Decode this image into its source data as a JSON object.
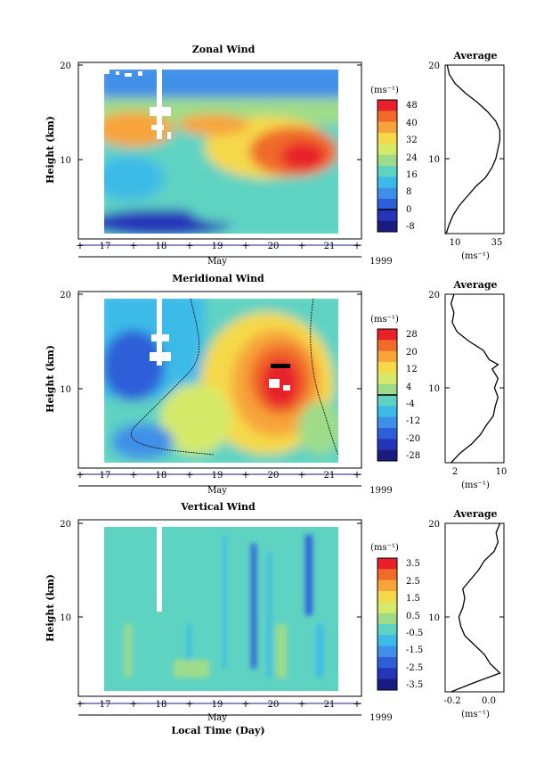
{
  "figure": {
    "xlabel": "Local Time (Day)"
  },
  "chart_data": [
    {
      "type": "heatmap",
      "title": "Zonal Wind",
      "ylabel": "Height (km)",
      "ylim": [
        2,
        20
      ],
      "yticks": [
        "20",
        "10"
      ],
      "xlabel": "May",
      "x_categories": [
        "17",
        "18",
        "19",
        "20",
        "21"
      ],
      "year": "1999",
      "colorbar": {
        "unit": "(ms⁻¹)",
        "levels": [
          "48",
          "40",
          "32",
          "24",
          "16",
          "8",
          "0",
          "-8"
        ],
        "colors": [
          "#e8202a",
          "#f06b2a",
          "#f7a43a",
          "#f5d94a",
          "#d6ea6a",
          "#9edc8a",
          "#5fd3c2",
          "#3cbbe8",
          "#3f8fe8",
          "#2f5fd8",
          "#2535b8",
          "#1a1a80"
        ]
      },
      "profile": {
        "title": "Average",
        "xlim": [
          8,
          37
        ],
        "xticks": [
          "10",
          "35"
        ],
        "yticks": [
          "20",
          "10"
        ],
        "unit": "(ms⁻¹)",
        "points": [
          [
            8.5,
            2
          ],
          [
            10,
            3
          ],
          [
            12,
            4
          ],
          [
            15,
            5
          ],
          [
            19,
            6
          ],
          [
            23,
            7
          ],
          [
            28,
            8
          ],
          [
            31,
            9
          ],
          [
            33,
            10
          ],
          [
            34,
            11
          ],
          [
            35,
            12
          ],
          [
            35,
            13
          ],
          [
            33,
            14
          ],
          [
            29,
            15
          ],
          [
            24,
            16
          ],
          [
            18,
            17
          ],
          [
            13,
            18
          ],
          [
            10,
            19
          ],
          [
            9,
            20
          ]
        ]
      }
    },
    {
      "type": "heatmap",
      "title": "Meridional Wind",
      "ylabel": "Height (km)",
      "ylim": [
        2,
        20
      ],
      "yticks": [
        "20",
        "10"
      ],
      "xlabel": "May",
      "x_categories": [
        "17",
        "18",
        "19",
        "20",
        "21"
      ],
      "year": "1999",
      "colorbar": {
        "unit": "(ms⁻¹)",
        "levels": [
          "28",
          "20",
          "12",
          "4",
          "-4",
          "-12",
          "-20",
          "-28"
        ],
        "colors": [
          "#e8202a",
          "#f06b2a",
          "#f7a43a",
          "#f5d94a",
          "#d6ea6a",
          "#9edc8a",
          "#5fd3c2",
          "#3cbbe8",
          "#3f8fe8",
          "#2f5fd8",
          "#2535b8",
          "#1a1a80"
        ]
      },
      "profile": {
        "title": "Average",
        "xlim": [
          0,
          10
        ],
        "xticks": [
          "2",
          "10"
        ],
        "yticks": [
          "20",
          "10"
        ],
        "unit": "(ms⁻¹)",
        "points": [
          [
            1,
            2
          ],
          [
            2.5,
            3
          ],
          [
            4.5,
            4
          ],
          [
            6,
            5
          ],
          [
            7,
            6
          ],
          [
            8.2,
            7
          ],
          [
            8.5,
            8
          ],
          [
            9,
            9
          ],
          [
            8.4,
            10
          ],
          [
            9,
            11
          ],
          [
            8,
            12
          ],
          [
            9,
            12.5
          ],
          [
            7.5,
            13
          ],
          [
            6.5,
            14
          ],
          [
            4,
            15
          ],
          [
            2,
            16
          ],
          [
            1.2,
            17
          ],
          [
            1.5,
            18
          ],
          [
            1,
            19
          ],
          [
            1.5,
            20
          ]
        ]
      }
    },
    {
      "type": "heatmap",
      "title": "Vertical Wind",
      "ylabel": "Height (km)",
      "ylim": [
        2,
        20
      ],
      "yticks": [
        "20",
        "10"
      ],
      "xlabel": "May",
      "x_categories": [
        "17",
        "18",
        "19",
        "20",
        "21"
      ],
      "year": "1999",
      "colorbar": {
        "unit": "(ms⁻¹)",
        "levels": [
          "3.5",
          "2.5",
          "1.5",
          "0.5",
          "-0.5",
          "-1.5",
          "-2.5",
          "-3.5"
        ],
        "colors": [
          "#e8202a",
          "#f06b2a",
          "#f7a43a",
          "#f5d94a",
          "#d6ea6a",
          "#9edc8a",
          "#5fd3c2",
          "#3cbbe8",
          "#3f8fe8",
          "#2f5fd8",
          "#2535b8",
          "#1a1a80"
        ]
      },
      "profile": {
        "title": "Average",
        "xlim": [
          -0.25,
          0.05
        ],
        "xticks": [
          "-0.2",
          "0.0"
        ],
        "yticks": [
          "20",
          "10"
        ],
        "unit": "(ms⁻¹)",
        "points": [
          [
            -0.22,
            2
          ],
          [
            -0.1,
            3
          ],
          [
            0.03,
            4
          ],
          [
            -0.02,
            5
          ],
          [
            -0.05,
            6
          ],
          [
            -0.1,
            7
          ],
          [
            -0.15,
            8
          ],
          [
            -0.17,
            9
          ],
          [
            -0.18,
            10
          ],
          [
            -0.16,
            11
          ],
          [
            -0.15,
            12
          ],
          [
            -0.16,
            13
          ],
          [
            -0.12,
            14
          ],
          [
            -0.08,
            15
          ],
          [
            -0.05,
            16
          ],
          [
            0.0,
            17
          ],
          [
            0.02,
            18
          ],
          [
            0.01,
            19
          ],
          [
            0.03,
            20
          ]
        ]
      }
    }
  ]
}
